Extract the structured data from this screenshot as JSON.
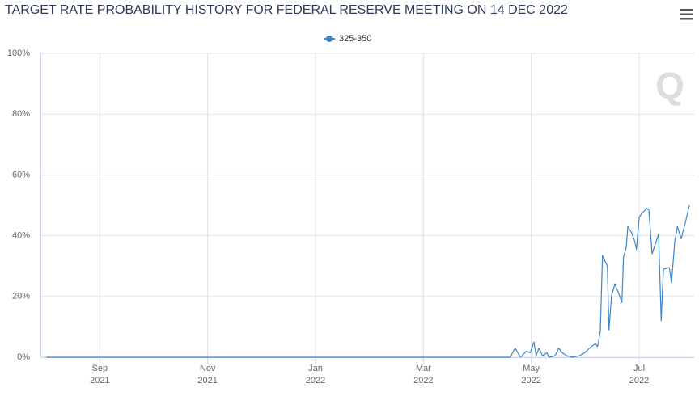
{
  "chart_data": {
    "type": "line",
    "title": "TARGET RATE PROBABILITY HISTORY FOR FEDERAL RESERVE MEETING ON 14 DEC 2022",
    "x": [
      8.01,
      16.61,
      16.7,
      16.8,
      16.91,
      16.98,
      17.05,
      17.09,
      17.14,
      17.21,
      17.29,
      17.33,
      17.44,
      17.51,
      17.57,
      17.66,
      17.75,
      17.9,
      17.99,
      18.08,
      18.19,
      18.23,
      18.28,
      18.32,
      18.41,
      18.44,
      18.49,
      18.55,
      18.62,
      18.68,
      18.71,
      18.76,
      18.79,
      18.86,
      18.92,
      18.95,
      19.0,
      19.06,
      19.14,
      19.18,
      19.24,
      19.36,
      19.41,
      19.45,
      19.56,
      19.6,
      19.66,
      19.71,
      19.78,
      19.86,
      19.93
    ],
    "series": [
      {
        "name": "325-350",
        "color": "#3d85c6",
        "values": [
          0,
          0,
          3,
          0,
          2,
          1.5,
          5,
          0.5,
          3,
          0.5,
          1.5,
          0,
          0.5,
          3,
          1.5,
          0.5,
          0,
          0.5,
          1.5,
          3,
          4.5,
          3.5,
          8.5,
          33.5,
          30,
          9,
          20.5,
          24,
          21,
          18,
          33,
          36,
          43,
          41,
          38,
          35.5,
          46,
          47.5,
          49,
          48.5,
          34,
          40.5,
          12,
          29,
          29.5,
          24.5,
          38,
          43,
          39,
          44.5,
          50
        ]
      }
    ],
    "xlim": [
      7.9,
      20.02
    ],
    "xticks": [
      {
        "value": 9,
        "label": "Sep 2021"
      },
      {
        "value": 11,
        "label": "Nov 2021"
      },
      {
        "value": 13,
        "label": "Jan 2022"
      },
      {
        "value": 15,
        "label": "Mar 2022"
      },
      {
        "value": 17,
        "label": "May 2022"
      },
      {
        "value": 19,
        "label": "Jul 2022"
      }
    ],
    "ylim": [
      0,
      100
    ],
    "yticks": [
      {
        "value": 0,
        "label": "0%"
      },
      {
        "value": 20,
        "label": "20%"
      },
      {
        "value": 40,
        "label": "40%"
      },
      {
        "value": 60,
        "label": "60%"
      },
      {
        "value": 80,
        "label": "80%"
      },
      {
        "value": 100,
        "label": "100%"
      }
    ],
    "grid": true
  }
}
